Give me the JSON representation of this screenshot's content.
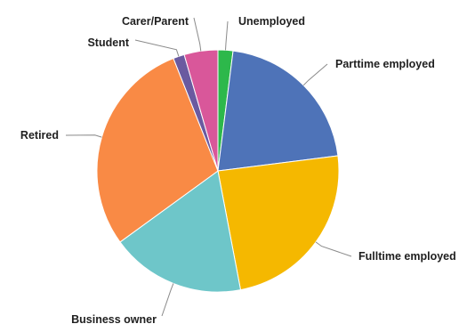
{
  "chart_data": {
    "type": "pie",
    "title": "",
    "start": "top, clockwise",
    "legend": "none (direct labels with leader lines)",
    "slices": [
      {
        "label": "Unemployed",
        "value": 2,
        "color": "#2db84b"
      },
      {
        "label": "Parttime employed",
        "value": 21,
        "color": "#4e73b8"
      },
      {
        "label": "Fulltime employed",
        "value": 24,
        "color": "#f5b800"
      },
      {
        "label": "Business owner",
        "value": 18,
        "color": "#6ec6c9"
      },
      {
        "label": "Retired",
        "value": 29,
        "color": "#f98a45"
      },
      {
        "label": "Student",
        "value": 1.5,
        "color": "#6a5aa0"
      },
      {
        "label": "Carer/Parent",
        "value": 4.5,
        "color": "#d9579a"
      }
    ]
  }
}
